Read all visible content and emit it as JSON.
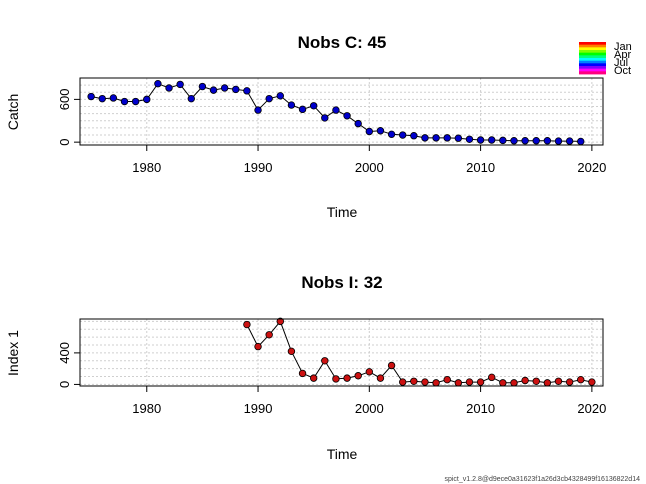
{
  "footer": "spict_v1.2.8@d9ece0a31623f1a26d3cb4328499f16136822d14",
  "legend": {
    "labels": [
      "Jan",
      "Apr",
      "Jul",
      "Oct"
    ],
    "colors": [
      "#ff0000",
      "#ff8000",
      "#ffff00",
      "#80ff00",
      "#00ff00",
      "#00ff80",
      "#00ffff",
      "#0080ff",
      "#0000ff",
      "#8000ff",
      "#ff00ff",
      "#ff0080"
    ]
  },
  "chart_data": [
    {
      "type": "line",
      "title": "Nobs C: 45",
      "xlabel": "Time",
      "ylabel": "Catch",
      "xlim": [
        1974,
        2021
      ],
      "ylim": [
        -40,
        900
      ],
      "xticks": [
        1980,
        1990,
        2000,
        2010,
        2020
      ],
      "yticks": [
        0,
        600
      ],
      "grid": true,
      "point_color": "#0000cc",
      "x": [
        1975,
        1976,
        1977,
        1978,
        1979,
        1980,
        1981,
        1982,
        1983,
        1984,
        1985,
        1986,
        1987,
        1988,
        1989,
        1990,
        1991,
        1992,
        1993,
        1994,
        1995,
        1996,
        1997,
        1998,
        1999,
        2000,
        2001,
        2002,
        2003,
        2004,
        2005,
        2006,
        2007,
        2008,
        2009,
        2010,
        2011,
        2012,
        2013,
        2014,
        2015,
        2016,
        2017,
        2018,
        2019
      ],
      "y": [
        640,
        610,
        620,
        570,
        570,
        600,
        820,
        760,
        810,
        610,
        780,
        730,
        760,
        740,
        720,
        450,
        610,
        650,
        520,
        460,
        510,
        340,
        450,
        370,
        260,
        150,
        160,
        110,
        100,
        90,
        60,
        60,
        60,
        55,
        40,
        30,
        30,
        25,
        20,
        20,
        20,
        20,
        15,
        15,
        10
      ]
    },
    {
      "type": "line",
      "title": "Nobs I: 32",
      "xlabel": "Time",
      "ylabel": "Index 1",
      "xlim": [
        1974,
        2021
      ],
      "ylim": [
        -20,
        830
      ],
      "xticks": [
        1980,
        1990,
        2000,
        2010,
        2020
      ],
      "yticks": [
        0,
        400
      ],
      "grid": true,
      "point_color": "#cc1111",
      "x": [
        1989,
        1990,
        1991,
        1992,
        1993,
        1994,
        1995,
        1996,
        1997,
        1998,
        1999,
        2000,
        2001,
        2002,
        2003,
        2004,
        2005,
        2006,
        2007,
        2008,
        2009,
        2010,
        2011,
        2012,
        2013,
        2014,
        2015,
        2016,
        2017,
        2018,
        2019,
        2020
      ],
      "y": [
        760,
        480,
        630,
        800,
        420,
        140,
        80,
        300,
        70,
        80,
        110,
        160,
        80,
        240,
        30,
        40,
        30,
        20,
        60,
        20,
        30,
        30,
        90,
        20,
        20,
        50,
        40,
        20,
        40,
        30,
        60,
        30
      ]
    }
  ]
}
